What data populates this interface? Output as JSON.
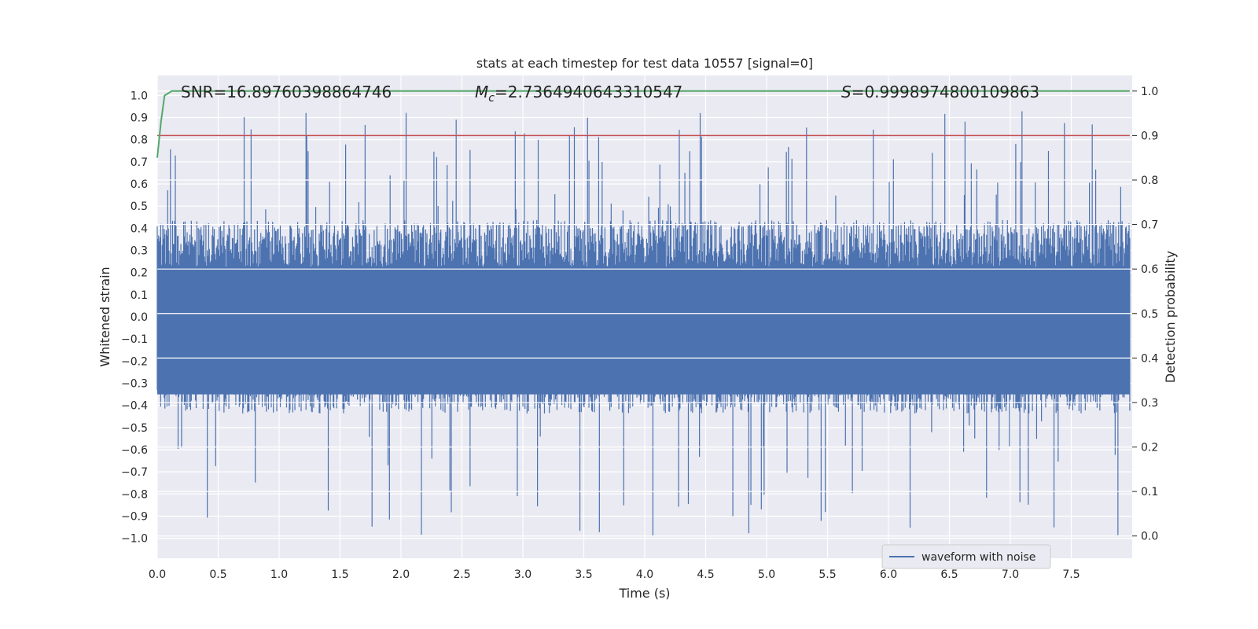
{
  "chart_data": {
    "type": "line",
    "title": "stats at each timestep for test data 10557 [signal=0]",
    "xlabel": "Time (s)",
    "ylabel": "Whitened strain",
    "ylabel_right": "Detection probability",
    "xlim": [
      0.0,
      8.0
    ],
    "ylim": [
      -1.09,
      1.09
    ],
    "ylim_right": [
      -0.05,
      1.035
    ],
    "x_ticks": [
      "0.0",
      "0.5",
      "1.0",
      "1.5",
      "2.0",
      "2.5",
      "3.0",
      "3.5",
      "4.0",
      "4.5",
      "5.0",
      "5.5",
      "6.0",
      "6.5",
      "7.0",
      "7.5"
    ],
    "y_ticks": [
      "1.0",
      "0.9",
      "0.8",
      "0.7",
      "0.6",
      "0.5",
      "0.4",
      "0.3",
      "0.2",
      "0.1",
      "0.0",
      "−0.1",
      "−0.2",
      "−0.3",
      "−0.4",
      "−0.5",
      "−0.6",
      "−0.7",
      "−0.8",
      "−0.9",
      "−1.0"
    ],
    "y_ticks_right": [
      "1.0",
      "0.9",
      "0.8",
      "0.7",
      "0.6",
      "0.5",
      "0.4",
      "0.3",
      "0.2",
      "0.1",
      "0.0"
    ],
    "grid": true,
    "legend": {
      "position": "lower-right",
      "entries": [
        "waveform with noise"
      ]
    },
    "annotations": {
      "snr": "SNR=16.89760398864746",
      "mc_symbol": "M",
      "mc_sub": "c",
      "mc_value": "=2.7364940643310547",
      "s_symbol": "S",
      "s_value": "=0.9998974800109863"
    },
    "threshold": {
      "axis": "right",
      "value": 0.9
    },
    "series": [
      {
        "name": "waveform with noise",
        "axis": "left",
        "duration_s": 7.98,
        "envelope": {
          "typical_max": 0.47,
          "typical_min": -0.47,
          "peak_max": 0.94,
          "peak_min": -1.0
        }
      },
      {
        "name": "detection probability",
        "axis": "right",
        "x": [
          0.0,
          0.03,
          0.06,
          0.12,
          0.2,
          0.5,
          1.0,
          2.0,
          3.0,
          4.0,
          5.0,
          6.0,
          7.0,
          7.98
        ],
        "values": [
          0.85,
          0.93,
          0.99,
          1.0,
          1.0,
          1.0,
          1.0,
          1.0,
          1.0,
          1.0,
          1.0,
          1.0,
          1.0,
          1.0
        ]
      }
    ],
    "colors": {
      "waveform": "#4c72b0",
      "probability": "#55a868",
      "threshold": "#c44e52",
      "plot_background": "#eaeaf2",
      "grid": "#ffffff",
      "text": "#262626"
    }
  }
}
